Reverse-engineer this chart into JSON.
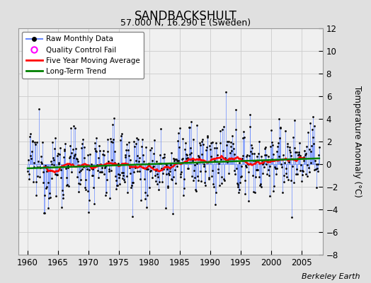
{
  "title": "SANDBACKSHULT",
  "subtitle": "57.000 N, 16.290 E (Sweden)",
  "ylabel": "Temperature Anomaly (°C)",
  "attribution": "Berkeley Earth",
  "xlim": [
    1958.5,
    2008.5
  ],
  "ylim": [
    -8,
    12
  ],
  "yticks": [
    -8,
    -6,
    -4,
    -2,
    0,
    2,
    4,
    6,
    8,
    10,
    12
  ],
  "xticks": [
    1960,
    1965,
    1970,
    1975,
    1980,
    1985,
    1990,
    1995,
    2000,
    2005
  ],
  "xticklabels": [
    "1960",
    "1965",
    "1970",
    "1975",
    "1980",
    "1985",
    "1990",
    "1995",
    "2000",
    "2005"
  ],
  "bg_color": "#e0e0e0",
  "plot_bg_color": "#f0f0f0",
  "grid_color": "#cccccc",
  "raw_line_color": "#6688ff",
  "raw_dot_color": "black",
  "raw_dot_size": 4,
  "ma_color": "red",
  "trend_color": "green",
  "qc_fail_color": "magenta",
  "seed": 12345,
  "n_years": 48,
  "start_year": 1960
}
